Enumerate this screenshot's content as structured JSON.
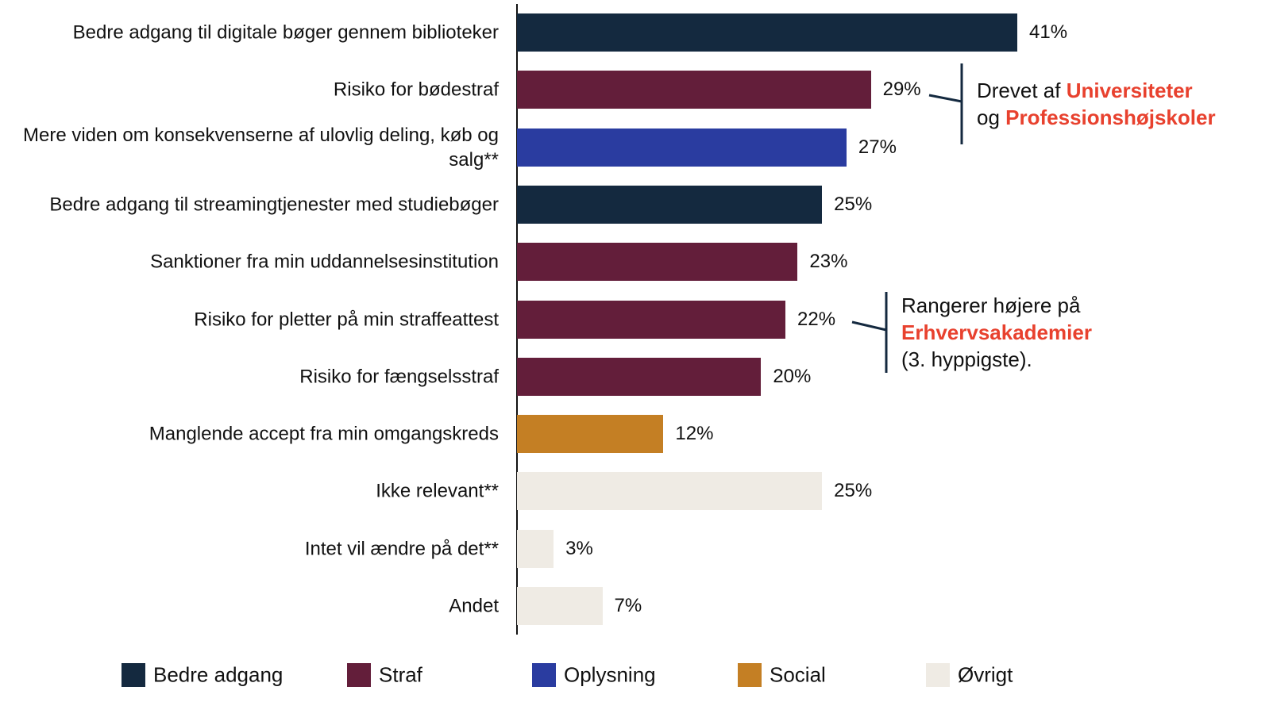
{
  "chart_data": {
    "type": "bar",
    "orientation": "horizontal",
    "categories": [
      "Bedre adgang til digitale bøger gennem biblioteker",
      "Risiko for bødestraf",
      "Mere viden om konsekvenserne af ulovlig deling, køb og salg**",
      "Bedre adgang til streamingtjenester med studiebøger",
      "Sanktioner fra min uddannelsesinstitution",
      "Risiko for pletter på min straffeattest",
      "Risiko for fængselsstraf",
      "Manglende accept fra min omgangskreds",
      "Ikke relevant**",
      "Intet vil ændre på det**",
      "Andet"
    ],
    "values": [
      41,
      29,
      27,
      25,
      23,
      22,
      20,
      12,
      25,
      3,
      7
    ],
    "value_labels": [
      "41%",
      "29%",
      "27%",
      "25%",
      "23%",
      "22%",
      "20%",
      "12%",
      "25%",
      "3%",
      "7%"
    ],
    "colors": [
      "#14293f",
      "#631e3a",
      "#2a3ca0",
      "#14293f",
      "#631e3a",
      "#631e3a",
      "#631e3a",
      "#c47f24",
      "#efebe4",
      "#efebe4",
      "#efebe4"
    ],
    "legend": [
      {
        "name": "Bedre adgang",
        "color": "#14293f"
      },
      {
        "name": "Straf",
        "color": "#631e3a"
      },
      {
        "name": "Oplysning",
        "color": "#2a3ca0"
      },
      {
        "name": "Social",
        "color": "#c47f24"
      },
      {
        "name": "Øvrigt",
        "color": "#efebe4"
      }
    ],
    "highlight_color": "#e8412e",
    "annotations": [
      {
        "lines": [
          [
            {
              "text": "Drevet af "
            },
            {
              "text": "Universiteter",
              "highlight": true
            }
          ],
          [
            {
              "text": "og "
            },
            {
              "text": "Professionshøjskoler",
              "highlight": true
            }
          ]
        ]
      },
      {
        "lines": [
          [
            {
              "text": "Rangerer højere på"
            }
          ],
          [
            {
              "text": "Erhvervsakademier",
              "highlight": true
            }
          ],
          [
            {
              "text": "(3. hyppigste)."
            }
          ]
        ]
      }
    ]
  }
}
